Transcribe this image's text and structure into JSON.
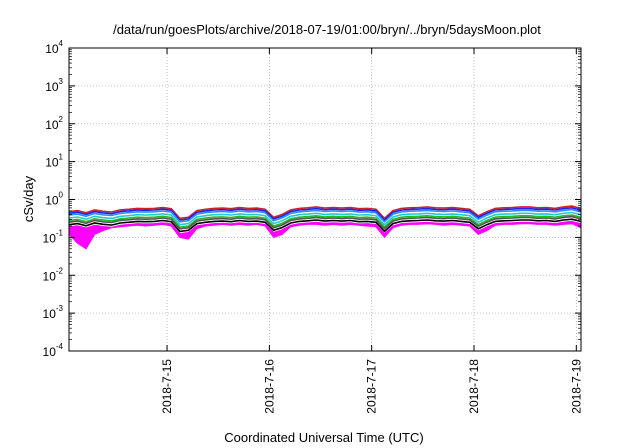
{
  "chart_data": {
    "type": "area",
    "title": "/data/run/goesPlots/archive/2018-07-19/01:00/bryn/../bryn/5daysMoon.plot",
    "xlabel": "Coordinated Universal Time (UTC)",
    "ylabel": "cSv/day",
    "yscale": "log",
    "ylim": [
      0.0001,
      10000
    ],
    "xlim": [
      "2018-07-14T01:00",
      "2018-07-19T01:06"
    ],
    "grid": true,
    "x_ticks": [
      "2018-7-15",
      "2018-7-16",
      "2018-7-17",
      "2018-7-18",
      "2018-7-19"
    ],
    "y_ticks": [
      {
        "base": "10",
        "exp": "4"
      },
      {
        "base": "10",
        "exp": "3"
      },
      {
        "base": "10",
        "exp": "2"
      },
      {
        "base": "10",
        "exp": "1"
      },
      {
        "base": "10",
        "exp": "0"
      },
      {
        "base": "10",
        "exp": "-1"
      },
      {
        "base": "10",
        "exp": "-2"
      },
      {
        "base": "10",
        "exp": "-3"
      },
      {
        "base": "10",
        "exp": "-4"
      }
    ],
    "hours": [
      0,
      2,
      4,
      6,
      8,
      10,
      12,
      14,
      16,
      18,
      20,
      22,
      24,
      26,
      28,
      30,
      32,
      34,
      36,
      38,
      40,
      42,
      44,
      46,
      48,
      50,
      52,
      54,
      56,
      58,
      60,
      62,
      64,
      66,
      68,
      70,
      72,
      74,
      76,
      78,
      80,
      82,
      84,
      86,
      88,
      90,
      92,
      94,
      96,
      98,
      100,
      102,
      104,
      106,
      108,
      110,
      112,
      114,
      116,
      118,
      120
    ],
    "base_envelope": {
      "upper": [
        0.45,
        0.48,
        0.42,
        0.5,
        0.46,
        0.44,
        0.5,
        0.52,
        0.55,
        0.54,
        0.55,
        0.58,
        0.54,
        0.3,
        0.32,
        0.48,
        0.52,
        0.55,
        0.56,
        0.54,
        0.58,
        0.55,
        0.56,
        0.52,
        0.32,
        0.38,
        0.5,
        0.55,
        0.57,
        0.6,
        0.56,
        0.58,
        0.56,
        0.58,
        0.54,
        0.55,
        0.52,
        0.3,
        0.48,
        0.55,
        0.57,
        0.58,
        0.6,
        0.57,
        0.56,
        0.58,
        0.55,
        0.52,
        0.35,
        0.45,
        0.55,
        0.57,
        0.58,
        0.6,
        0.6,
        0.57,
        0.58,
        0.55,
        0.6,
        0.63,
        0.55
      ],
      "lower": [
        0.12,
        0.07,
        0.05,
        0.12,
        0.15,
        0.18,
        0.19,
        0.2,
        0.21,
        0.2,
        0.21,
        0.22,
        0.2,
        0.1,
        0.09,
        0.17,
        0.2,
        0.21,
        0.22,
        0.21,
        0.22,
        0.21,
        0.22,
        0.2,
        0.1,
        0.12,
        0.19,
        0.21,
        0.22,
        0.22,
        0.21,
        0.22,
        0.21,
        0.22,
        0.21,
        0.2,
        0.19,
        0.1,
        0.18,
        0.21,
        0.22,
        0.22,
        0.23,
        0.22,
        0.21,
        0.22,
        0.21,
        0.2,
        0.12,
        0.15,
        0.21,
        0.22,
        0.22,
        0.23,
        0.23,
        0.22,
        0.22,
        0.21,
        0.22,
        0.23,
        0.18
      ]
    },
    "series": [
      {
        "color": "#ff00ff",
        "factor": 0.42,
        "fill": true
      },
      {
        "color": "#cc2222",
        "factor": 1.06
      },
      {
        "color": "#2222ee",
        "factor": 0.96
      },
      {
        "color": "#2a8cff",
        "factor": 0.86
      },
      {
        "color": "#22cccc",
        "factor": 0.72
      },
      {
        "color": "#22bb22",
        "factor": 0.62
      },
      {
        "color": "#555555",
        "factor": 0.56
      },
      {
        "color": "#000000",
        "factor": 0.48
      }
    ]
  }
}
